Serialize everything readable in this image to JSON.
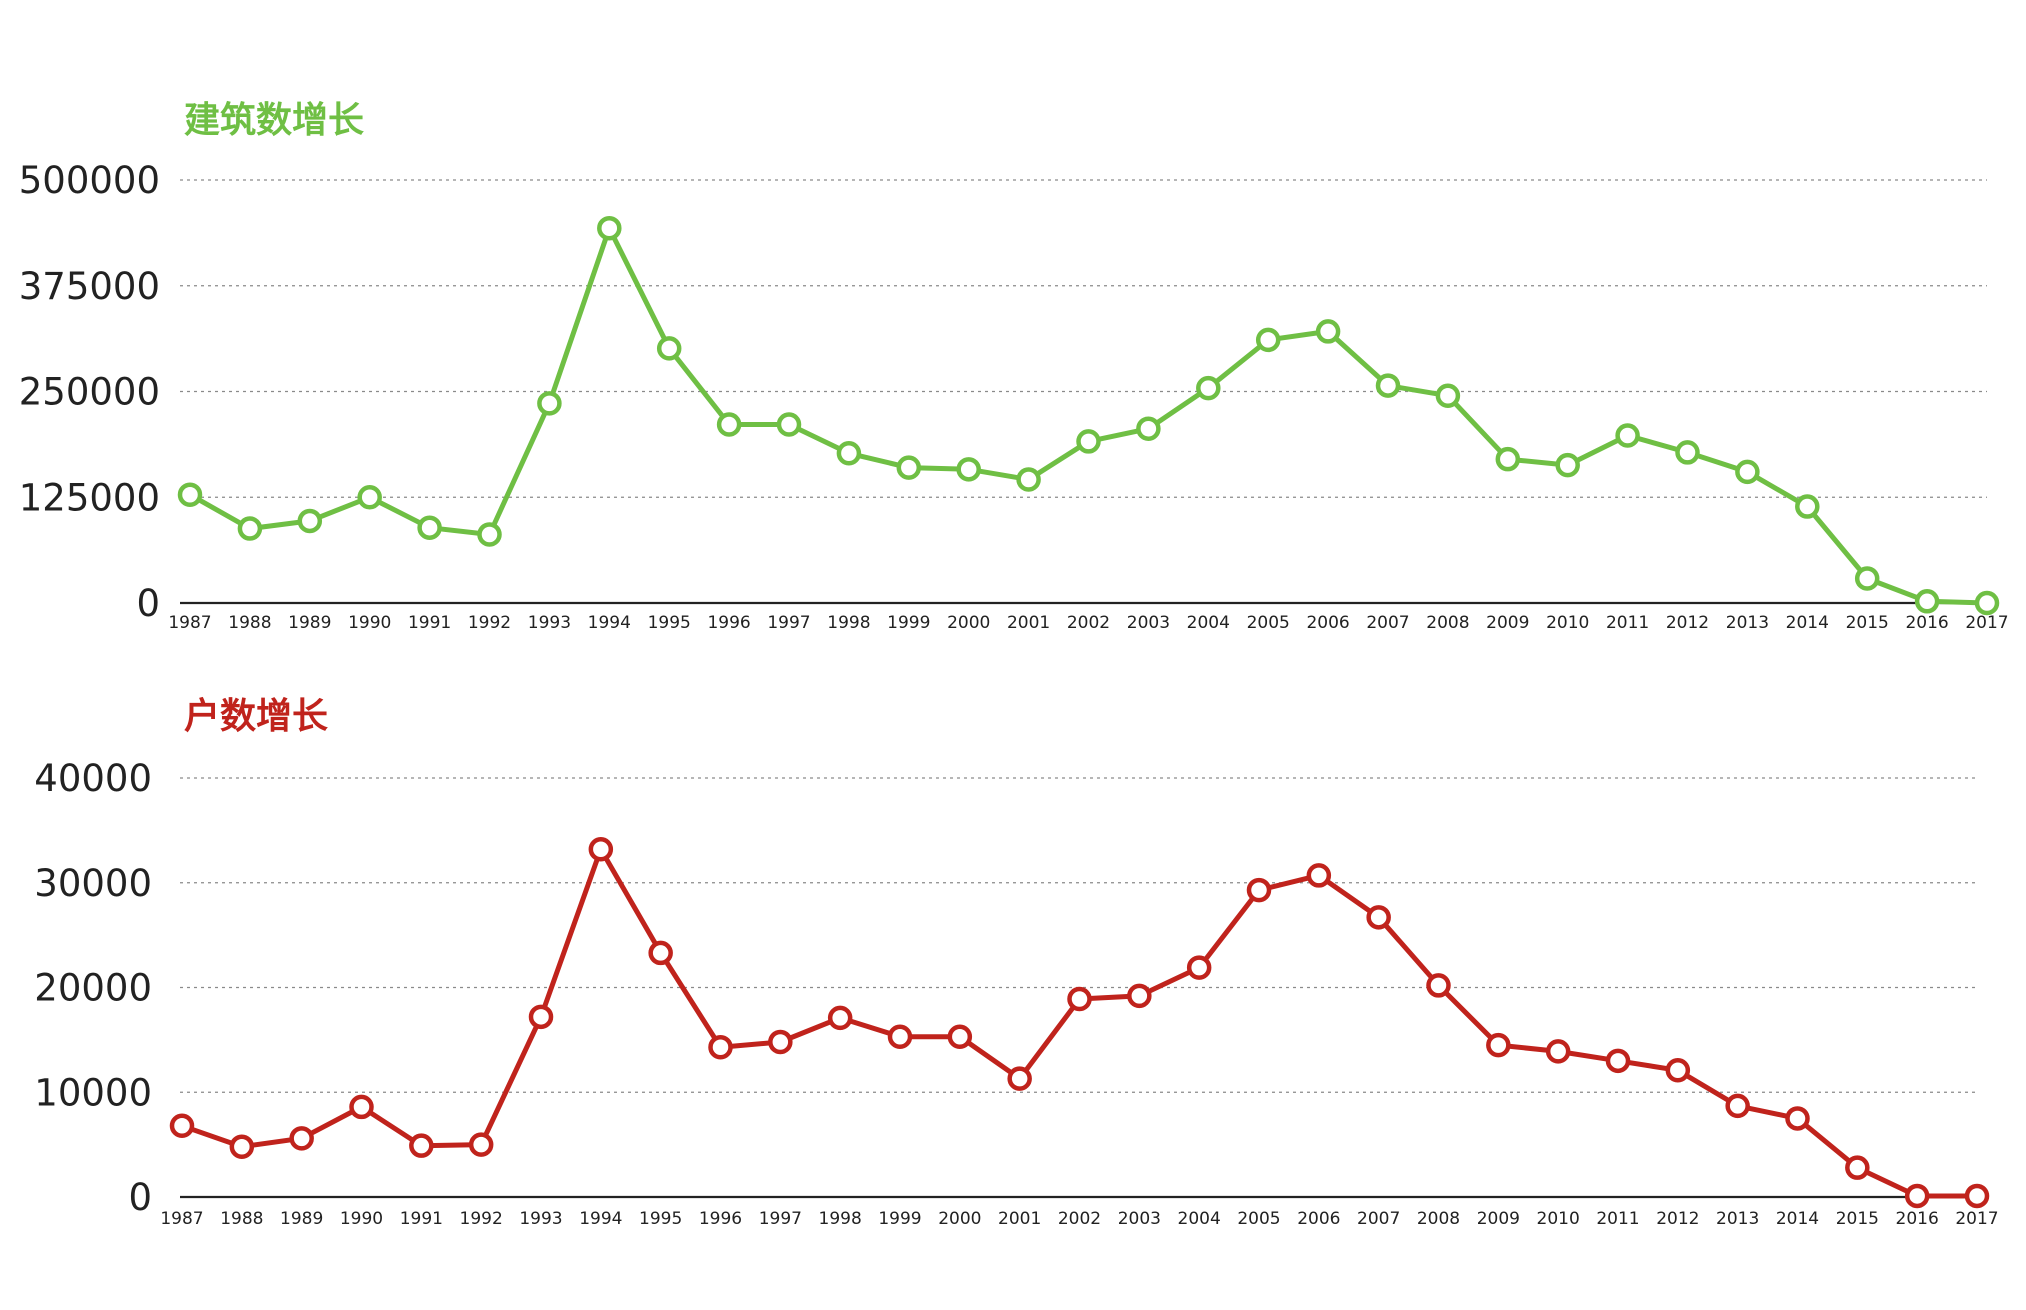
{
  "chart_data": [
    {
      "type": "line",
      "title": "建筑数增长",
      "color": "#6fbf44",
      "xlabel": "",
      "ylabel": "",
      "ylim": [
        0,
        500000
      ],
      "yticks": [
        "0",
        "125000",
        "250000",
        "375000",
        "500000"
      ],
      "grid": true,
      "categories": [
        "1987",
        "1988",
        "1989",
        "1990",
        "1991",
        "1992",
        "1993",
        "1994",
        "1995",
        "1996",
        "1997",
        "1998",
        "1999",
        "2000",
        "2001",
        "2002",
        "2003",
        "2004",
        "2005",
        "2006",
        "2007",
        "2008",
        "2009",
        "2010",
        "2011",
        "2012",
        "2013",
        "2014",
        "2015",
        "2016",
        "2017"
      ],
      "series": [
        {
          "values": [
            128000,
            88000,
            97000,
            125000,
            89000,
            81000,
            236000,
            443000,
            301000,
            211000,
            211000,
            177000,
            160000,
            158000,
            146000,
            191000,
            206000,
            254000,
            311000,
            321000,
            257000,
            245000,
            170000,
            163000,
            198000,
            178000,
            155000,
            114000,
            29000,
            2000,
            0
          ]
        }
      ]
    },
    {
      "type": "line",
      "title": "户数增长",
      "color": "#c0231c",
      "xlabel": "",
      "ylabel": "",
      "ylim": [
        0,
        40000
      ],
      "yticks": [
        "0",
        "10000",
        "20000",
        "30000",
        "40000"
      ],
      "grid": true,
      "categories": [
        "1987",
        "1988",
        "1989",
        "1990",
        "1991",
        "1992",
        "1993",
        "1994",
        "1995",
        "1996",
        "1997",
        "1998",
        "1999",
        "2000",
        "2001",
        "2002",
        "2003",
        "2004",
        "2005",
        "2006",
        "2007",
        "2008",
        "2009",
        "2010",
        "2011",
        "2012",
        "2013",
        "2014",
        "2015",
        "2016",
        "2017"
      ],
      "series": [
        {
          "values": [
            6800,
            4800,
            5600,
            8600,
            4900,
            5000,
            17200,
            33200,
            23300,
            14300,
            14800,
            17100,
            15300,
            15300,
            11300,
            18900,
            19200,
            21900,
            29300,
            30700,
            26700,
            20200,
            14500,
            13900,
            13000,
            12100,
            8700,
            7500,
            2800,
            100,
            100
          ]
        }
      ]
    }
  ]
}
